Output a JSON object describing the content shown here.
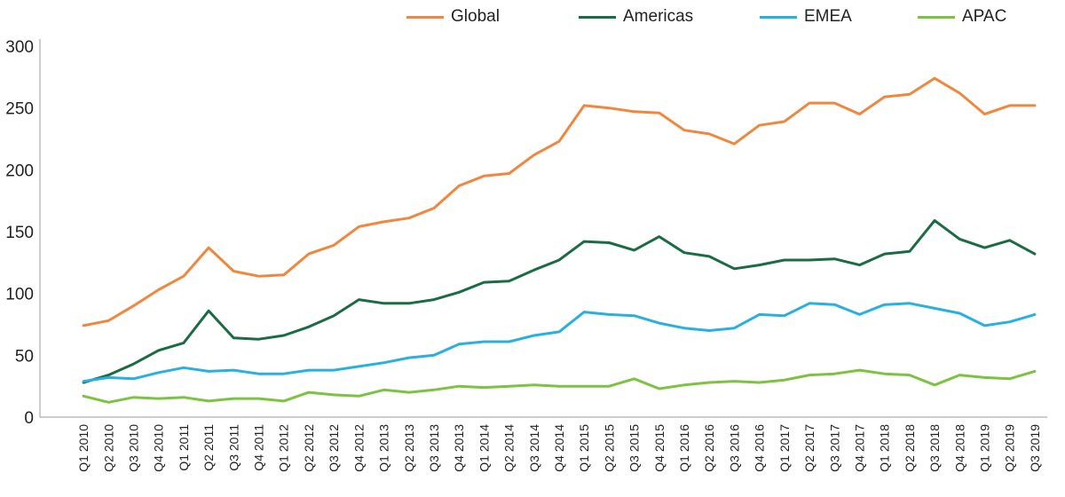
{
  "chart_data": {
    "type": "line",
    "title": "",
    "xlabel": "",
    "ylabel": "",
    "ylim": [
      0,
      300
    ],
    "yticks": [
      0,
      50,
      100,
      150,
      200,
      250,
      300
    ],
    "grid": false,
    "legend_position": "top",
    "x": [
      "Q1 2010",
      "Q2 2010",
      "Q3 2010",
      "Q4 2010",
      "Q1 2011",
      "Q2 2011",
      "Q3 2011",
      "Q4 2011",
      "Q1 2012",
      "Q2 2012",
      "Q3 2012",
      "Q4 2012",
      "Q1 2013",
      "Q2 2013",
      "Q3 2013",
      "Q4 2013",
      "Q1 2014",
      "Q2 2014",
      "Q3 2014",
      "Q4 2014",
      "Q1 2015",
      "Q2 2015",
      "Q3 2015",
      "Q4 2015",
      "Q1 2016",
      "Q2 2016",
      "Q3 2016",
      "Q4 2016",
      "Q1 2017",
      "Q2 2017",
      "Q3 2017",
      "Q4 2017",
      "Q1 2018",
      "Q2 2018",
      "Q3 2018",
      "Q4 2018",
      "Q1 2019",
      "Q2 2019",
      "Q3 2019"
    ],
    "series": [
      {
        "name": "Global",
        "color": "#F0873E",
        "values": [
          74,
          78,
          90,
          103,
          114,
          137,
          118,
          114,
          115,
          132,
          139,
          154,
          158,
          161,
          169,
          187,
          195,
          197,
          212,
          223,
          252,
          250,
          247,
          246,
          232,
          229,
          221,
          236,
          239,
          254,
          254,
          245,
          259,
          261,
          274,
          262,
          245,
          252,
          252
        ]
      },
      {
        "name": "Americas",
        "color": "#1B6B45",
        "values": [
          28,
          34,
          43,
          54,
          60,
          86,
          64,
          63,
          66,
          73,
          82,
          95,
          92,
          92,
          95,
          101,
          109,
          110,
          119,
          127,
          142,
          141,
          135,
          146,
          133,
          130,
          120,
          123,
          127,
          127,
          128,
          123,
          132,
          134,
          159,
          144,
          137,
          143,
          132
        ]
      },
      {
        "name": "EMEA",
        "color": "#29B0DE",
        "values": [
          29,
          32,
          31,
          36,
          40,
          37,
          38,
          35,
          35,
          38,
          38,
          41,
          44,
          48,
          50,
          59,
          61,
          61,
          66,
          69,
          85,
          83,
          82,
          76,
          72,
          70,
          72,
          83,
          82,
          92,
          91,
          83,
          91,
          92,
          88,
          84,
          74,
          77,
          83
        ]
      },
      {
        "name": "APAC",
        "color": "#7DC242",
        "values": [
          17,
          12,
          16,
          15,
          16,
          13,
          15,
          15,
          13,
          20,
          18,
          17,
          22,
          20,
          22,
          25,
          24,
          25,
          26,
          25,
          25,
          25,
          31,
          23,
          26,
          28,
          29,
          28,
          30,
          34,
          35,
          38,
          35,
          34,
          26,
          34,
          32,
          31,
          37
        ]
      }
    ]
  }
}
